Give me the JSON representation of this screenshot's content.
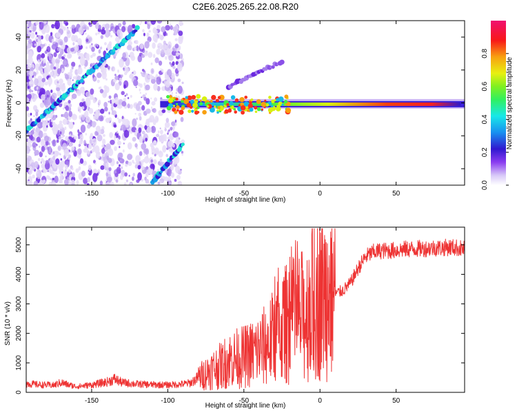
{
  "chart_data": [
    {
      "type": "heatmap",
      "title": "C2E6.2025.265.22.08.R20",
      "xlabel": "Height of straight line (km)",
      "ylabel": "Frequency (Hz)",
      "xlim": [
        -193,
        95
      ],
      "ylim": [
        -50,
        50
      ],
      "x_ticks": [
        -150,
        -100,
        -50,
        0,
        50
      ],
      "y_ticks": [
        -40,
        -20,
        0,
        20,
        40
      ],
      "colorbar": {
        "label": "Normalized spectral amplitude",
        "range": [
          0,
          1
        ],
        "ticks": [
          0.0,
          0.2,
          0.4,
          0.6,
          0.8
        ],
        "tick_labels": [
          "0.0",
          "0.2",
          "0.4",
          "0.6",
          "0.8"
        ]
      },
      "features": [
        {
          "name": "main echo band",
          "x_range": [
            -105,
            95
          ],
          "frequency_hz": -1,
          "peak_amplitude": 1.0
        },
        {
          "name": "rising diagonal trace",
          "from": [
            -193,
            -17
          ],
          "to": [
            -120,
            45
          ],
          "peak_amplitude": 0.45
        },
        {
          "name": "lower diagonal trace",
          "from": [
            -110,
            -48
          ],
          "to": [
            -90,
            -25
          ],
          "peak_amplitude": 0.4
        },
        {
          "name": "upper diagonal trace",
          "from": [
            -60,
            10
          ],
          "to": [
            -25,
            25
          ],
          "peak_amplitude": 0.2
        }
      ]
    },
    {
      "type": "line",
      "xlabel": "Height of straight line (km)",
      "ylabel": "SNR (10 * v/v)",
      "xlim": [
        -193,
        95
      ],
      "ylim": [
        0,
        5600
      ],
      "x_ticks": [
        -150,
        -100,
        -50,
        0,
        50
      ],
      "y_ticks": [
        0,
        1000,
        2000,
        3000,
        4000,
        5000
      ],
      "series": [
        {
          "name": "SNR",
          "color": "#ee3333",
          "x": [
            -193,
            -185,
            -175,
            -170,
            -165,
            -160,
            -150,
            -140,
            -135,
            -130,
            -120,
            -110,
            -100,
            -90,
            -85,
            -80,
            -75,
            -70,
            -65,
            -60,
            -55,
            -50,
            -45,
            -40,
            -35,
            -30,
            -25,
            -20,
            -15,
            -10,
            -5,
            0,
            5,
            10,
            15,
            20,
            25,
            30,
            35,
            40,
            45,
            50,
            55,
            60,
            65,
            70,
            75,
            80,
            85,
            90,
            95
          ],
          "values": [
            300,
            260,
            240,
            330,
            250,
            200,
            250,
            350,
            450,
            330,
            280,
            260,
            250,
            280,
            320,
            500,
            650,
            800,
            900,
            1100,
            1150,
            1200,
            1300,
            1450,
            1600,
            1900,
            2200,
            2400,
            2500,
            2600,
            3000,
            3300,
            3400,
            3350,
            3450,
            3700,
            4200,
            4600,
            4750,
            4800,
            4800,
            4820,
            4850,
            4860,
            4870,
            4880,
            4900,
            4900,
            4920,
            4900,
            4850
          ]
        }
      ]
    }
  ]
}
